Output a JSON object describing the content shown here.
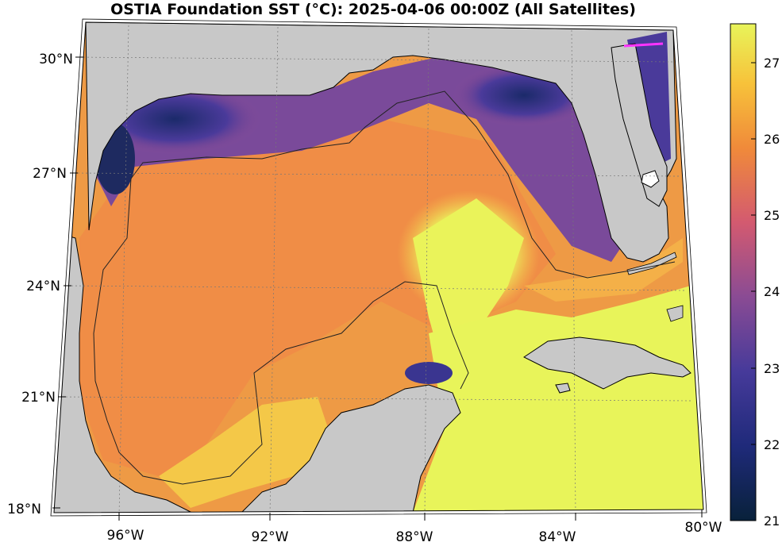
{
  "title": "OSTIA Foundation SST (°C): 2025-04-06 00:00Z (All Satellites)",
  "map": {
    "variable": "Foundation SST",
    "units": "°C",
    "lat_ticks": [
      "30°N",
      "27°N",
      "24°N",
      "21°N",
      "18°N"
    ],
    "lon_ticks": [
      "96°W",
      "92°W",
      "88°W",
      "84°W",
      "80°W"
    ],
    "land_color": "#c8c8c8",
    "grid": "dotted"
  },
  "colorbar": {
    "range": [
      21,
      27.5
    ],
    "ticks": [
      "27",
      "26",
      "25",
      "24",
      "23",
      "22",
      "21"
    ],
    "colormap": [
      "#08213a",
      "#1f2a7a",
      "#463a9a",
      "#8a4b94",
      "#d35a70",
      "#f08a3a",
      "#f7c23a",
      "#e8f45a"
    ]
  }
}
